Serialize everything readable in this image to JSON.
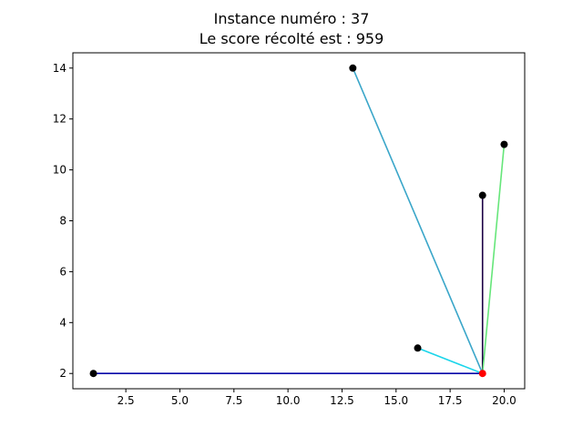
{
  "chart_data": {
    "type": "scatter",
    "title_line1": "Instance numéro : 37",
    "title_line2": "Le score récolté est : 959",
    "xlabel": "",
    "ylabel": "",
    "xlim": [
      0.05,
      20.95
    ],
    "ylim": [
      1.4,
      14.6
    ],
    "xticks": [
      2.5,
      5.0,
      7.5,
      10.0,
      12.5,
      15.0,
      17.5,
      20.0
    ],
    "xtick_labels": [
      "2.5",
      "5.0",
      "7.5",
      "10.0",
      "12.5",
      "15.0",
      "17.5",
      "20.0"
    ],
    "yticks": [
      2,
      4,
      6,
      8,
      10,
      12,
      14
    ],
    "ytick_labels": [
      "2",
      "4",
      "6",
      "8",
      "10",
      "12",
      "14"
    ],
    "grid": false,
    "depot": {
      "x": 19,
      "y": 2,
      "color": "#ff0000"
    },
    "points": [
      {
        "x": 1,
        "y": 2
      },
      {
        "x": 13,
        "y": 14
      },
      {
        "x": 16,
        "y": 3
      },
      {
        "x": 19,
        "y": 9
      },
      {
        "x": 20,
        "y": 11
      }
    ],
    "point_color": "#000000",
    "routes": [
      {
        "from": [
          19,
          2
        ],
        "to": [
          1,
          2
        ],
        "color": "#0000a8"
      },
      {
        "from": [
          19,
          2
        ],
        "to": [
          13,
          14
        ],
        "color": "#3aa6c9"
      },
      {
        "from": [
          19,
          2
        ],
        "to": [
          16,
          3
        ],
        "color": "#1ad5ea"
      },
      {
        "from": [
          19,
          2
        ],
        "to": [
          19,
          9
        ],
        "color": "#1a0044"
      },
      {
        "from": [
          19,
          2
        ],
        "to": [
          20,
          11
        ],
        "color": "#66e67a"
      }
    ]
  }
}
